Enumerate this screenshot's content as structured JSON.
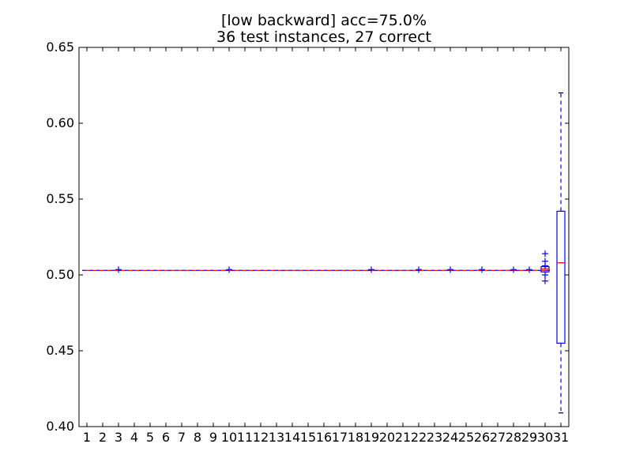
{
  "chart_data": {
    "type": "boxplot",
    "title_lines": [
      "[low backward] acc=75.0%",
      "36 test instances, 27 correct"
    ],
    "xlabel": "",
    "ylabel": "",
    "ylim": [
      0.4,
      0.65
    ],
    "y_ticks": [
      "0.40",
      "0.45",
      "0.50",
      "0.55",
      "0.60",
      "0.65"
    ],
    "y_tick_values": [
      0.4,
      0.45,
      0.5,
      0.55,
      0.6,
      0.65
    ],
    "categories": [
      "1",
      "2",
      "3",
      "4",
      "5",
      "6",
      "7",
      "8",
      "9",
      "10",
      "11",
      "12",
      "13",
      "14",
      "15",
      "16",
      "17",
      "18",
      "19",
      "20",
      "21",
      "22",
      "23",
      "24",
      "25",
      "26",
      "27",
      "28",
      "29",
      "30",
      "31"
    ],
    "median_line": 0.503,
    "outlier_marks": [
      {
        "category": "3",
        "values": [
          0.5035
        ]
      },
      {
        "category": "10",
        "values": [
          0.5035
        ]
      },
      {
        "category": "19",
        "values": [
          0.5035
        ]
      },
      {
        "category": "22",
        "values": [
          0.5035
        ]
      },
      {
        "category": "24",
        "values": [
          0.5035
        ]
      },
      {
        "category": "26",
        "values": [
          0.5035
        ]
      },
      {
        "category": "28",
        "values": [
          0.5035
        ]
      },
      {
        "category": "29",
        "values": [
          0.5035
        ]
      },
      {
        "category": "30",
        "values": [
          0.514,
          0.509,
          0.506,
          0.5,
          0.496
        ]
      }
    ],
    "boxes": [
      {
        "category": "30",
        "q1": 0.502,
        "median": 0.504,
        "q3": 0.5055,
        "whisker_low": 0.502,
        "whisker_high": 0.5055
      },
      {
        "category": "31",
        "q1": 0.455,
        "median": 0.508,
        "q3": 0.542,
        "whisker_low": 0.409,
        "whisker_high": 0.62
      }
    ],
    "colors": {
      "box": "#0000ff",
      "median": "#ff0000",
      "whisker": "#0000ff",
      "flier": "#0000ff",
      "cap": "#000000"
    },
    "grid": false
  }
}
